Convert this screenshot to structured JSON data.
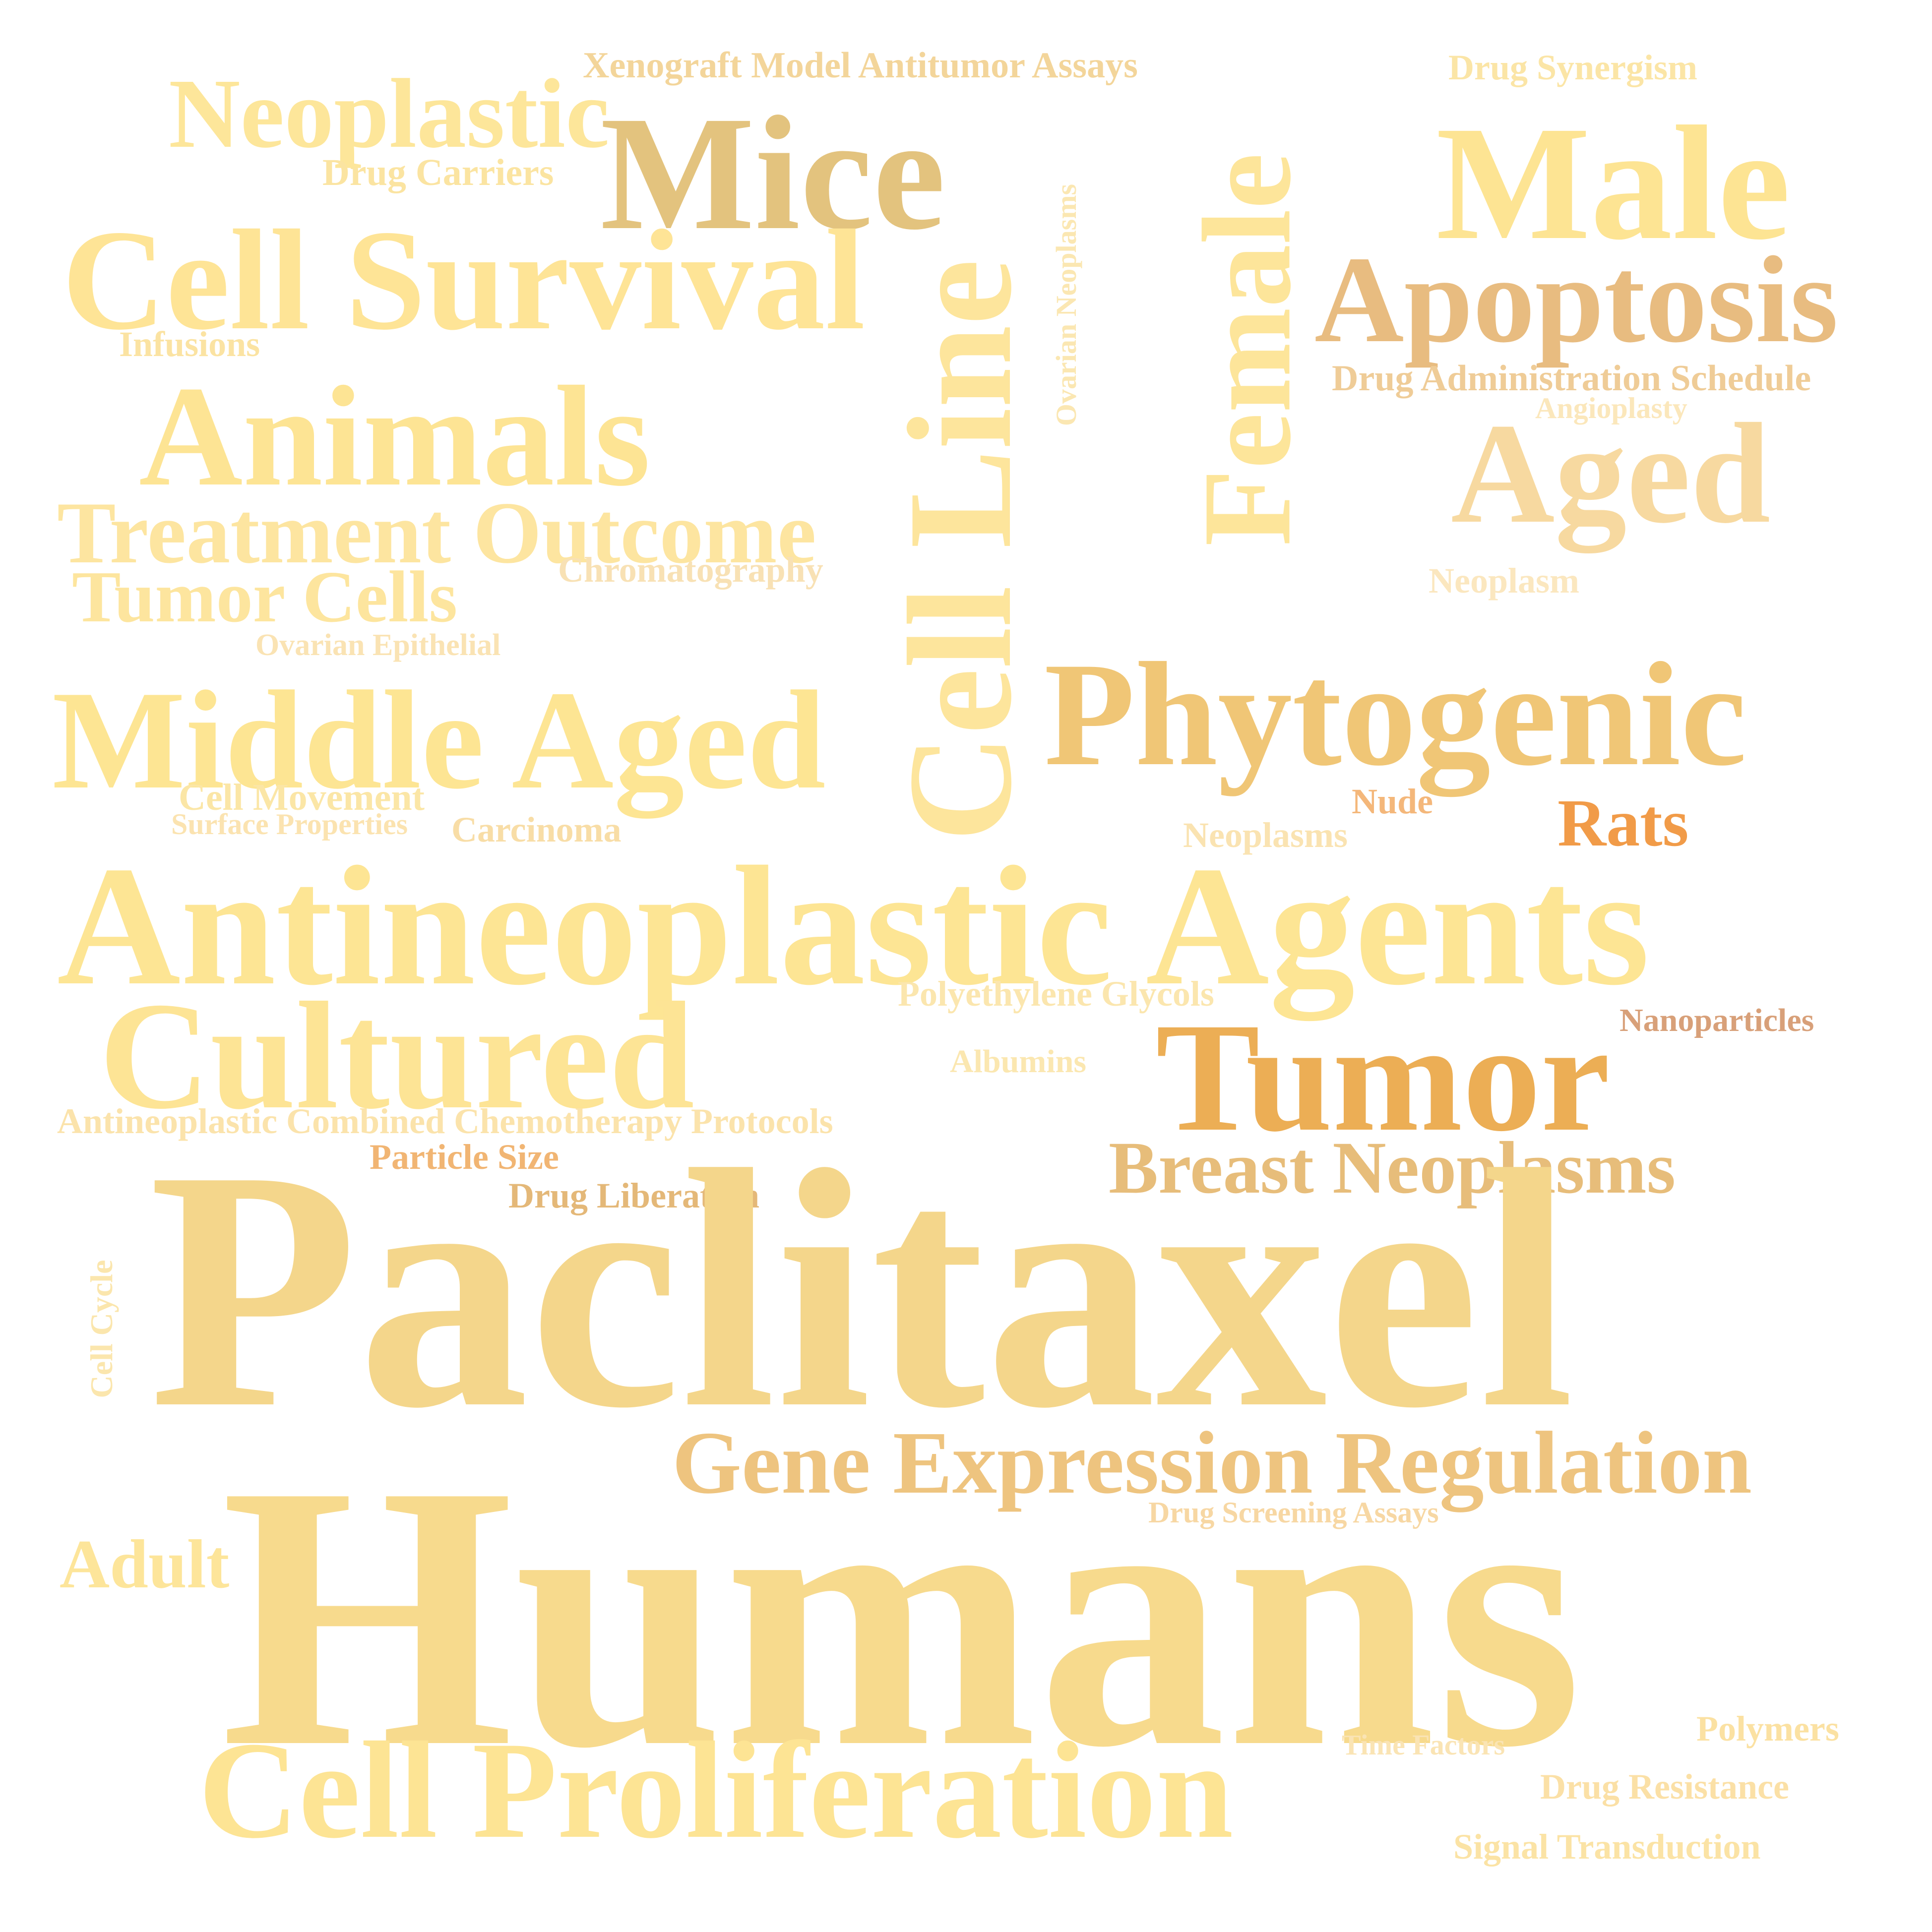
{
  "words": [
    {
      "text": "Xenograft Model Antitumor Assays",
      "color": "#f3d59a"
    },
    {
      "text": "Drug Synergism",
      "color": "#fbe5a6"
    },
    {
      "text": "Neoplastic",
      "color": "#fde69a"
    },
    {
      "text": "Mice",
      "color": "#e3c37e"
    },
    {
      "text": "Drug Carriers",
      "color": "#fbe4a1"
    },
    {
      "text": "Male",
      "color": "#fde493"
    },
    {
      "text": "Cell Survival",
      "color": "#fee496"
    },
    {
      "text": "Apoptosis",
      "color": "#e8bc80"
    },
    {
      "text": "Infusions",
      "color": "#fbe3a2"
    },
    {
      "text": "Ovarian Neoplasms",
      "color": "#fbe7b2"
    },
    {
      "text": "Female",
      "color": "#fde59a"
    },
    {
      "text": "Drug Administration Schedule",
      "color": "#efcc97"
    },
    {
      "text": "Angioplasty",
      "color": "#fbe7bb"
    },
    {
      "text": "Animals",
      "color": "#fde494"
    },
    {
      "text": "Aged",
      "color": "#f7d9a0"
    },
    {
      "text": "Cell Line",
      "color": "#fde59c"
    },
    {
      "text": "Treatment Outcome",
      "color": "#fde5a0"
    },
    {
      "text": "Chromatography",
      "color": "#f8e1b4"
    },
    {
      "text": "Tumor Cells",
      "color": "#fde59e"
    },
    {
      "text": "Neoplasm",
      "color": "#fbe7bf"
    },
    {
      "text": "Ovarian Epithelial",
      "color": "#fae3b3"
    },
    {
      "text": "Phytogenic",
      "color": "#f0c676"
    },
    {
      "text": "Middle Aged",
      "color": "#fde593"
    },
    {
      "text": "Cell Movement",
      "color": "#fbe6a6"
    },
    {
      "text": "Nude",
      "color": "#f4b77a"
    },
    {
      "text": "Surface Properties",
      "color": "#fbe3b0"
    },
    {
      "text": "Carcinoma",
      "color": "#f8dda6"
    },
    {
      "text": "Rats",
      "color": "#f19b48"
    },
    {
      "text": "Neoplasms",
      "color": "#fae3b1"
    },
    {
      "text": "Antineoplastic Agents",
      "color": "#fde594"
    },
    {
      "text": "Polyethylene Glycols",
      "color": "#fbe6ae"
    },
    {
      "text": "Nanoparticles",
      "color": "#d8a079"
    },
    {
      "text": "Cultured",
      "color": "#fde495"
    },
    {
      "text": "Albumins",
      "color": "#fbe7b0"
    },
    {
      "text": "Tumor",
      "color": "#ecae55"
    },
    {
      "text": "Antineoplastic Combined Chemotherapy Protocols",
      "color": "#fbe3ab"
    },
    {
      "text": "Particle Size",
      "color": "#f1b573"
    },
    {
      "text": "Breast Neoplasms",
      "color": "#e7bd7a"
    },
    {
      "text": "Drug Liberation",
      "color": "#e4b878"
    },
    {
      "text": "Paclitaxel",
      "color": "#f4d68b"
    },
    {
      "text": "Cell Cycle",
      "color": "#fbe6ad"
    },
    {
      "text": "Gene Expression Regulation",
      "color": "#eec47f"
    },
    {
      "text": "Drug Screening Assays",
      "color": "#f7d7a3"
    },
    {
      "text": "Adult",
      "color": "#fde59a"
    },
    {
      "text": "Humans",
      "color": "#f7da8d"
    },
    {
      "text": "Polymers",
      "color": "#fbe1a2"
    },
    {
      "text": "Time Factors",
      "color": "#fae4b4"
    },
    {
      "text": "Drug Resistance",
      "color": "#fbe0a6"
    },
    {
      "text": "Cell Proliferation",
      "color": "#fde494"
    },
    {
      "text": "Signal Transduction",
      "color": "#fbe3a5"
    }
  ]
}
